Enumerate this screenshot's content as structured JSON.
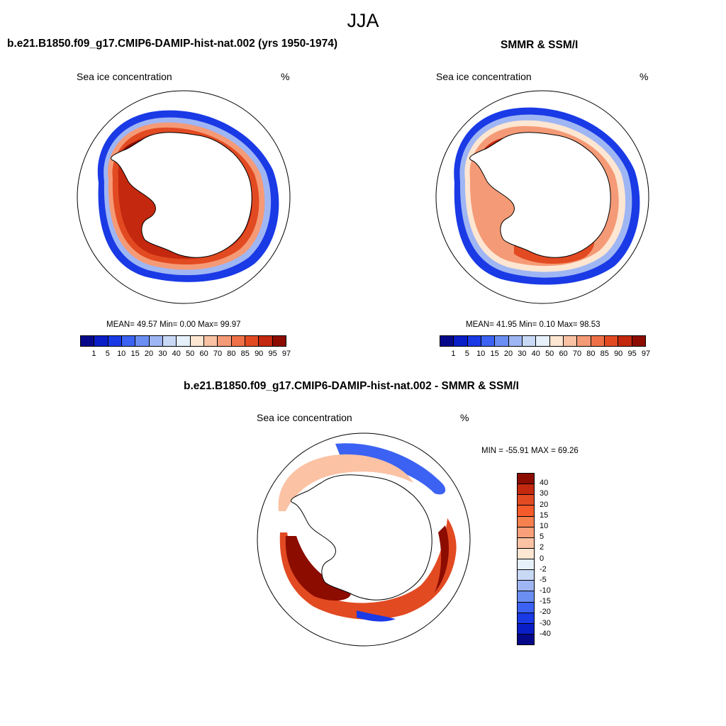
{
  "page": {
    "title": "JJA"
  },
  "chart_data": [
    {
      "type": "heatmap",
      "projection": "south-polar-stereographic",
      "title": "b.e21.B1850.f09_g17.CMIP6-DAMIP-hist-nat.002 (yrs 1950-1974)",
      "left_label": "Sea ice concentration",
      "right_label": "%",
      "stats": {
        "mean": "49.57",
        "min": "0.00",
        "max": "99.97"
      },
      "stats_text": "MEAN=  49.57  Min=   0.00  Max=  99.97",
      "levels": [
        "1",
        "5",
        "10",
        "15",
        "20",
        "30",
        "40",
        "50",
        "60",
        "70",
        "80",
        "85",
        "90",
        "95",
        "97"
      ],
      "bin_colors": [
        "#06088a",
        "#0a1ec8",
        "#1a3ae6",
        "#3b62f2",
        "#6a8ef2",
        "#9fb6f4",
        "#c8d9f6",
        "#e6f0fa",
        "#fde6d2",
        "#f9c2a4",
        "#f59a76",
        "#ef7046",
        "#e24a22",
        "#c4280e",
        "#8c0c00"
      ]
    },
    {
      "type": "heatmap",
      "projection": "south-polar-stereographic",
      "title": "SMMR & SSM/I",
      "left_label": "Sea ice concentration",
      "right_label": "%",
      "stats": {
        "mean": "41.95",
        "min": "0.10",
        "max": "98.53"
      },
      "stats_text": "MEAN=  41.95  Min=   0.10  Max=  98.53",
      "levels": [
        "1",
        "5",
        "10",
        "15",
        "20",
        "30",
        "40",
        "50",
        "60",
        "70",
        "80",
        "85",
        "90",
        "95",
        "97"
      ],
      "bin_colors": [
        "#06088a",
        "#0a1ec8",
        "#1a3ae6",
        "#3b62f2",
        "#6a8ef2",
        "#9fb6f4",
        "#c8d9f6",
        "#e6f0fa",
        "#fde6d2",
        "#f9c2a4",
        "#f59a76",
        "#ef7046",
        "#e24a22",
        "#c4280e",
        "#8c0c00"
      ]
    },
    {
      "type": "heatmap",
      "projection": "south-polar-stereographic",
      "title": "b.e21.B1850.f09_g17.CMIP6-DAMIP-hist-nat.002 - SMMR & SSM/I",
      "left_label": "Sea ice concentration",
      "right_label": "%",
      "stats": {
        "min": "-55.91",
        "max": "69.26"
      },
      "stats_text": "MIN = -55.91 MAX =  69.26",
      "levels": [
        "40",
        "30",
        "20",
        "15",
        "10",
        "5",
        "2",
        "0",
        "-2",
        "-5",
        "-10",
        "-15",
        "-20",
        "-30",
        "-40"
      ],
      "bin_colors": [
        "#8c0c00",
        "#c4280e",
        "#e24a22",
        "#f55a2a",
        "#f7804f",
        "#f9a07a",
        "#fbc2a4",
        "#fde6d2",
        "#e6f0fa",
        "#c8d9f6",
        "#9fb6f4",
        "#6a8ef2",
        "#3b62f2",
        "#1a3ae6",
        "#0a1ec8",
        "#06088a"
      ]
    }
  ]
}
